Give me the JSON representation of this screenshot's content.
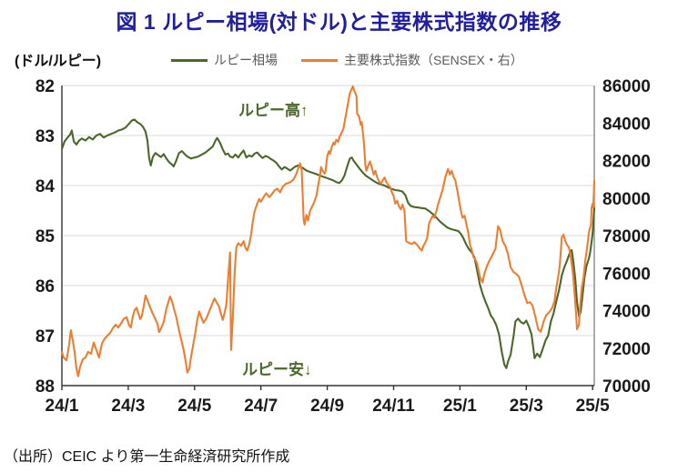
{
  "figure": {
    "title": "図 1 ルピー相場(対ドル)と主要株式指数の推移",
    "source": "（出所）CEIC より第一生命経済研究所作成"
  },
  "chart": {
    "unit_label": "(ドル/ルピー)",
    "legend": [
      {
        "label": "ルピー相場",
        "series": "rupee"
      },
      {
        "label": "主要株式指数（SENSEX・右）",
        "series": "sensex"
      }
    ],
    "annotations": [
      {
        "text": "ルピー高↑",
        "position": "upper"
      },
      {
        "text": "ルピー安↓",
        "position": "lower"
      }
    ]
  },
  "colors": {
    "title": "#1f1f9f",
    "rupee": "#4a682b",
    "sensex": "#ed7d31",
    "grid": "#d9d9d9",
    "axis": "#333333",
    "right_spine": "#808080",
    "tick_text": "#1a1a1a",
    "legend_text": "#595959",
    "annotation": "#4a682b"
  },
  "chart_data": {
    "type": "line",
    "title": "図 1 ルピー相場(対ドル)と主要株式指数の推移",
    "grid": true,
    "legend_position": "top",
    "x_axis": {
      "tick_labels": [
        "24/1",
        "24/3",
        "24/5",
        "24/7",
        "24/9",
        "24/11",
        "25/1",
        "25/3",
        "25/5"
      ],
      "tick_positions_months": [
        0,
        2,
        4,
        6,
        8,
        10,
        12,
        14,
        16
      ],
      "range_months": [
        0,
        16.05
      ],
      "note": "x is months since 2024-01 (24/1)"
    },
    "y_left": {
      "label": "ドル/ルピー",
      "ticks": [
        82,
        83,
        84,
        85,
        86,
        87,
        88
      ],
      "top": 82,
      "bottom": 88,
      "inverted": true
    },
    "y_right": {
      "label": "SENSEX",
      "ticks": [
        86000,
        84000,
        82000,
        80000,
        78000,
        76000,
        74000,
        72000,
        70000
      ],
      "top": 86000,
      "bottom": 70000
    },
    "series": [
      {
        "name": "ルピー相場",
        "axis": "left",
        "color": "#4a682b",
        "x": [
          0,
          0.08,
          0.16,
          0.25,
          0.3,
          0.36,
          0.44,
          0.52,
          0.6,
          0.71,
          0.82,
          0.93,
          1.04,
          1.15,
          1.26,
          1.37,
          1.48,
          1.59,
          1.7,
          1.81,
          1.92,
          2.03,
          2.11,
          2.19,
          2.27,
          2.36,
          2.44,
          2.52,
          2.58,
          2.63,
          2.68,
          2.74,
          2.82,
          2.9,
          2.99,
          3.07,
          3.15,
          3.23,
          3.32,
          3.37,
          3.45,
          3.53,
          3.62,
          3.7,
          3.78,
          3.89,
          4,
          4.11,
          4.22,
          4.33,
          4.44,
          4.55,
          4.63,
          4.68,
          4.77,
          4.85,
          4.93,
          5.01,
          5.07,
          5.15,
          5.23,
          5.32,
          5.4,
          5.48,
          5.56,
          5.64,
          5.73,
          5.81,
          5.89,
          5.97,
          6.05,
          6.14,
          6.22,
          6.3,
          6.38,
          6.47,
          6.55,
          6.63,
          6.71,
          6.79,
          6.88,
          6.96,
          7.04,
          7.12,
          7.21,
          7.29,
          7.37,
          7.45,
          7.53,
          7.62,
          7.7,
          7.78,
          7.86,
          7.95,
          8.03,
          8.11,
          8.19,
          8.27,
          8.36,
          8.44,
          8.52,
          8.6,
          8.68,
          8.74,
          8.79,
          8.88,
          8.96,
          9.07,
          9.18,
          9.29,
          9.4,
          9.51,
          9.62,
          9.73,
          9.84,
          9.95,
          10.05,
          10.16,
          10.27,
          10.36,
          10.44,
          10.52,
          10.63,
          10.74,
          10.85,
          10.96,
          11.07,
          11.18,
          11.29,
          11.4,
          11.51,
          11.62,
          11.73,
          11.84,
          11.95,
          12.03,
          12.11,
          12.19,
          12.27,
          12.36,
          12.44,
          12.52,
          12.6,
          12.68,
          12.77,
          12.85,
          12.93,
          13.01,
          13.1,
          13.18,
          13.26,
          13.34,
          13.4,
          13.45,
          13.53,
          13.62,
          13.67,
          13.75,
          13.84,
          13.92,
          14,
          14.08,
          14.16,
          14.25,
          14.33,
          14.41,
          14.49,
          14.58,
          14.66,
          14.74,
          14.82,
          14.9,
          14.99,
          15.07,
          15.15,
          15.23,
          15.32,
          15.37,
          15.42,
          15.48,
          15.53,
          15.59,
          15.64,
          15.7,
          15.75,
          15.81,
          15.89,
          15.93,
          15.97,
          16,
          16.05
        ],
        "values": [
          83.27,
          83.12,
          83.05,
          82.98,
          82.9,
          83.12,
          83.18,
          83.1,
          83.06,
          83.1,
          83.03,
          83.08,
          83.0,
          82.97,
          83.04,
          83.0,
          82.97,
          82.94,
          82.9,
          82.88,
          82.84,
          82.76,
          82.7,
          82.68,
          82.73,
          82.77,
          82.82,
          82.92,
          83.1,
          83.45,
          83.6,
          83.43,
          83.35,
          83.39,
          83.43,
          83.37,
          83.46,
          83.53,
          83.58,
          83.62,
          83.5,
          83.35,
          83.31,
          83.37,
          83.42,
          83.46,
          83.44,
          83.42,
          83.38,
          83.34,
          83.28,
          83.22,
          83.1,
          83.05,
          83.15,
          83.28,
          83.38,
          83.36,
          83.42,
          83.44,
          83.38,
          83.44,
          83.36,
          83.3,
          83.44,
          83.4,
          83.42,
          83.36,
          83.34,
          83.4,
          83.45,
          83.41,
          83.43,
          83.47,
          83.5,
          83.55,
          83.62,
          83.68,
          83.63,
          83.66,
          83.7,
          83.66,
          83.62,
          83.6,
          83.63,
          83.66,
          83.7,
          83.72,
          83.74,
          83.76,
          83.78,
          83.8,
          83.82,
          83.84,
          83.86,
          83.88,
          83.9,
          83.93,
          83.95,
          83.9,
          83.8,
          83.62,
          83.46,
          83.44,
          83.5,
          83.58,
          83.65,
          83.74,
          83.81,
          83.86,
          83.91,
          83.95,
          83.98,
          84.0,
          84.04,
          84.07,
          84.09,
          84.1,
          84.12,
          84.2,
          84.35,
          84.41,
          84.43,
          84.44,
          84.45,
          84.46,
          84.51,
          84.57,
          84.64,
          84.72,
          84.78,
          84.84,
          84.87,
          84.89,
          84.91,
          84.97,
          85.06,
          85.18,
          85.27,
          85.34,
          85.44,
          85.7,
          85.98,
          86.16,
          86.32,
          86.45,
          86.6,
          86.67,
          86.8,
          86.98,
          87.32,
          87.58,
          87.65,
          87.52,
          87.38,
          87.0,
          86.72,
          86.66,
          86.73,
          86.76,
          86.7,
          86.82,
          86.98,
          87.45,
          87.36,
          87.43,
          87.28,
          87.1,
          87.0,
          86.72,
          86.56,
          86.33,
          86.08,
          85.8,
          85.63,
          85.5,
          85.33,
          85.29,
          85.52,
          85.88,
          86.32,
          86.62,
          86.52,
          86.18,
          85.86,
          85.62,
          85.45,
          85.32,
          85.12,
          84.95,
          84.45
        ]
      },
      {
        "name": "主要株式指数（SENSEX・右）",
        "axis": "right",
        "color": "#ed7d31",
        "x": [
          0,
          0.05,
          0.14,
          0.22,
          0.27,
          0.33,
          0.38,
          0.44,
          0.49,
          0.55,
          0.63,
          0.71,
          0.79,
          0.88,
          0.96,
          1.04,
          1.12,
          1.21,
          1.29,
          1.37,
          1.45,
          1.53,
          1.62,
          1.7,
          1.78,
          1.86,
          1.95,
          2.03,
          2.08,
          2.14,
          2.19,
          2.25,
          2.3,
          2.36,
          2.41,
          2.47,
          2.52,
          2.58,
          2.63,
          2.71,
          2.79,
          2.88,
          2.93,
          2.99,
          3.07,
          3.15,
          3.21,
          3.26,
          3.32,
          3.37,
          3.45,
          3.53,
          3.62,
          3.67,
          3.73,
          3.78,
          3.84,
          3.89,
          3.95,
          4.03,
          4.08,
          4.14,
          4.19,
          4.27,
          4.36,
          4.44,
          4.52,
          4.6,
          4.66,
          4.74,
          4.79,
          4.85,
          4.9,
          4.96,
          5.01,
          5.07,
          5.1,
          5.15,
          5.18,
          5.21,
          5.26,
          5.32,
          5.4,
          5.48,
          5.53,
          5.59,
          5.64,
          5.7,
          5.75,
          5.81,
          5.89,
          5.95,
          6,
          6.08,
          6.16,
          6.25,
          6.33,
          6.41,
          6.49,
          6.58,
          6.66,
          6.74,
          6.82,
          6.9,
          6.99,
          7.07,
          7.15,
          7.18,
          7.23,
          7.29,
          7.32,
          7.37,
          7.42,
          7.48,
          7.53,
          7.59,
          7.67,
          7.73,
          7.78,
          7.81,
          7.86,
          7.92,
          7.95,
          8,
          8.05,
          8.08,
          8.14,
          8.19,
          8.22,
          8.27,
          8.33,
          8.38,
          8.44,
          8.49,
          8.55,
          8.63,
          8.68,
          8.77,
          8.82,
          8.88,
          8.9,
          8.96,
          9.01,
          9.04,
          9.1,
          9.15,
          9.18,
          9.23,
          9.29,
          9.34,
          9.4,
          9.45,
          9.51,
          9.56,
          9.62,
          9.67,
          9.73,
          9.78,
          9.84,
          9.89,
          9.95,
          10,
          10.05,
          10.11,
          10.16,
          10.22,
          10.27,
          10.33,
          10.38,
          10.47,
          10.55,
          10.63,
          10.71,
          10.79,
          10.85,
          10.9,
          10.96,
          11.01,
          11.07,
          11.12,
          11.18,
          11.23,
          11.29,
          11.34,
          11.42,
          11.48,
          11.56,
          11.64,
          11.7,
          11.75,
          11.81,
          11.86,
          11.92,
          11.97,
          12.03,
          12.08,
          12.14,
          12.19,
          12.25,
          12.3,
          12.36,
          12.41,
          12.47,
          12.52,
          12.6,
          12.68,
          12.74,
          12.82,
          12.9,
          12.99,
          13.07,
          13.15,
          13.21,
          13.29,
          13.37,
          13.45,
          13.53,
          13.62,
          13.7,
          13.78,
          13.86,
          13.95,
          14.03,
          14.11,
          14.19,
          14.27,
          14.36,
          14.44,
          14.52,
          14.6,
          14.68,
          14.77,
          14.85,
          14.9,
          14.96,
          15.01,
          15.07,
          15.12,
          15.18,
          15.23,
          15.29,
          15.34,
          15.4,
          15.45,
          15.51,
          15.53,
          15.59,
          15.62,
          15.67,
          15.73,
          15.78,
          15.84,
          15.89,
          15.95,
          15.97,
          16,
          16.02,
          16.05
        ],
        "values": [
          71800,
          71500,
          71350,
          72200,
          72950,
          72400,
          71800,
          70900,
          70500,
          71000,
          71400,
          71500,
          71800,
          71700,
          72300,
          71900,
          71500,
          72250,
          72500,
          72650,
          72800,
          73050,
          73250,
          73100,
          73300,
          73550,
          73650,
          73200,
          73100,
          73700,
          74000,
          74150,
          73900,
          73550,
          73700,
          74250,
          74800,
          74550,
          74300,
          73950,
          73650,
          73300,
          72850,
          73050,
          73400,
          74100,
          74450,
          74750,
          74500,
          74150,
          73650,
          72950,
          72300,
          71900,
          71300,
          70700,
          70900,
          71500,
          72100,
          72900,
          73500,
          73950,
          73700,
          73350,
          73600,
          73950,
          74300,
          74650,
          74450,
          74200,
          73850,
          73500,
          73850,
          74350,
          75700,
          77100,
          71900,
          73500,
          74800,
          76100,
          77380,
          77600,
          77450,
          77700,
          77350,
          77200,
          77500,
          78000,
          78700,
          79300,
          79700,
          79950,
          79800,
          80050,
          80250,
          80050,
          80200,
          80400,
          80500,
          80300,
          80600,
          80750,
          80800,
          80860,
          81000,
          81300,
          81700,
          81850,
          81500,
          78800,
          78580,
          79100,
          78800,
          79300,
          79500,
          79700,
          80100,
          80700,
          81200,
          81650,
          81450,
          81300,
          81450,
          82250,
          82500,
          82350,
          82750,
          82950,
          82850,
          83100,
          83000,
          83300,
          83500,
          83700,
          84300,
          85100,
          85600,
          85950,
          85700,
          85450,
          84500,
          84350,
          83900,
          84050,
          83050,
          81750,
          81450,
          81700,
          81950,
          81650,
          81250,
          81450,
          81100,
          80900,
          80750,
          80950,
          81100,
          80850,
          80700,
          80600,
          80300,
          80100,
          79700,
          79850,
          79550,
          79400,
          79650,
          79300,
          77700,
          77600,
          77550,
          77650,
          77500,
          77300,
          77200,
          77450,
          77650,
          77850,
          78650,
          78850,
          79050,
          78950,
          79300,
          79650,
          80100,
          80450,
          81100,
          81550,
          81250,
          81450,
          81100,
          80950,
          80400,
          79900,
          79300,
          78950,
          79050,
          78650,
          78150,
          77550,
          77200,
          76850,
          76700,
          76500,
          75800,
          75500,
          76000,
          76400,
          76700,
          77000,
          77300,
          78500,
          78300,
          77700,
          77450,
          77000,
          76300,
          76050,
          75950,
          75800,
          75350,
          74800,
          74400,
          74450,
          74250,
          73700,
          73000,
          72870,
          73400,
          73750,
          73900,
          74100,
          74500,
          75150,
          75800,
          76400,
          77900,
          78050,
          77700,
          77500,
          77350,
          76850,
          76100,
          75100,
          73600,
          73000,
          73250,
          74150,
          75150,
          75800,
          76700,
          77400,
          78200,
          78600,
          79500,
          79700,
          79500,
          80900
        ]
      }
    ]
  }
}
